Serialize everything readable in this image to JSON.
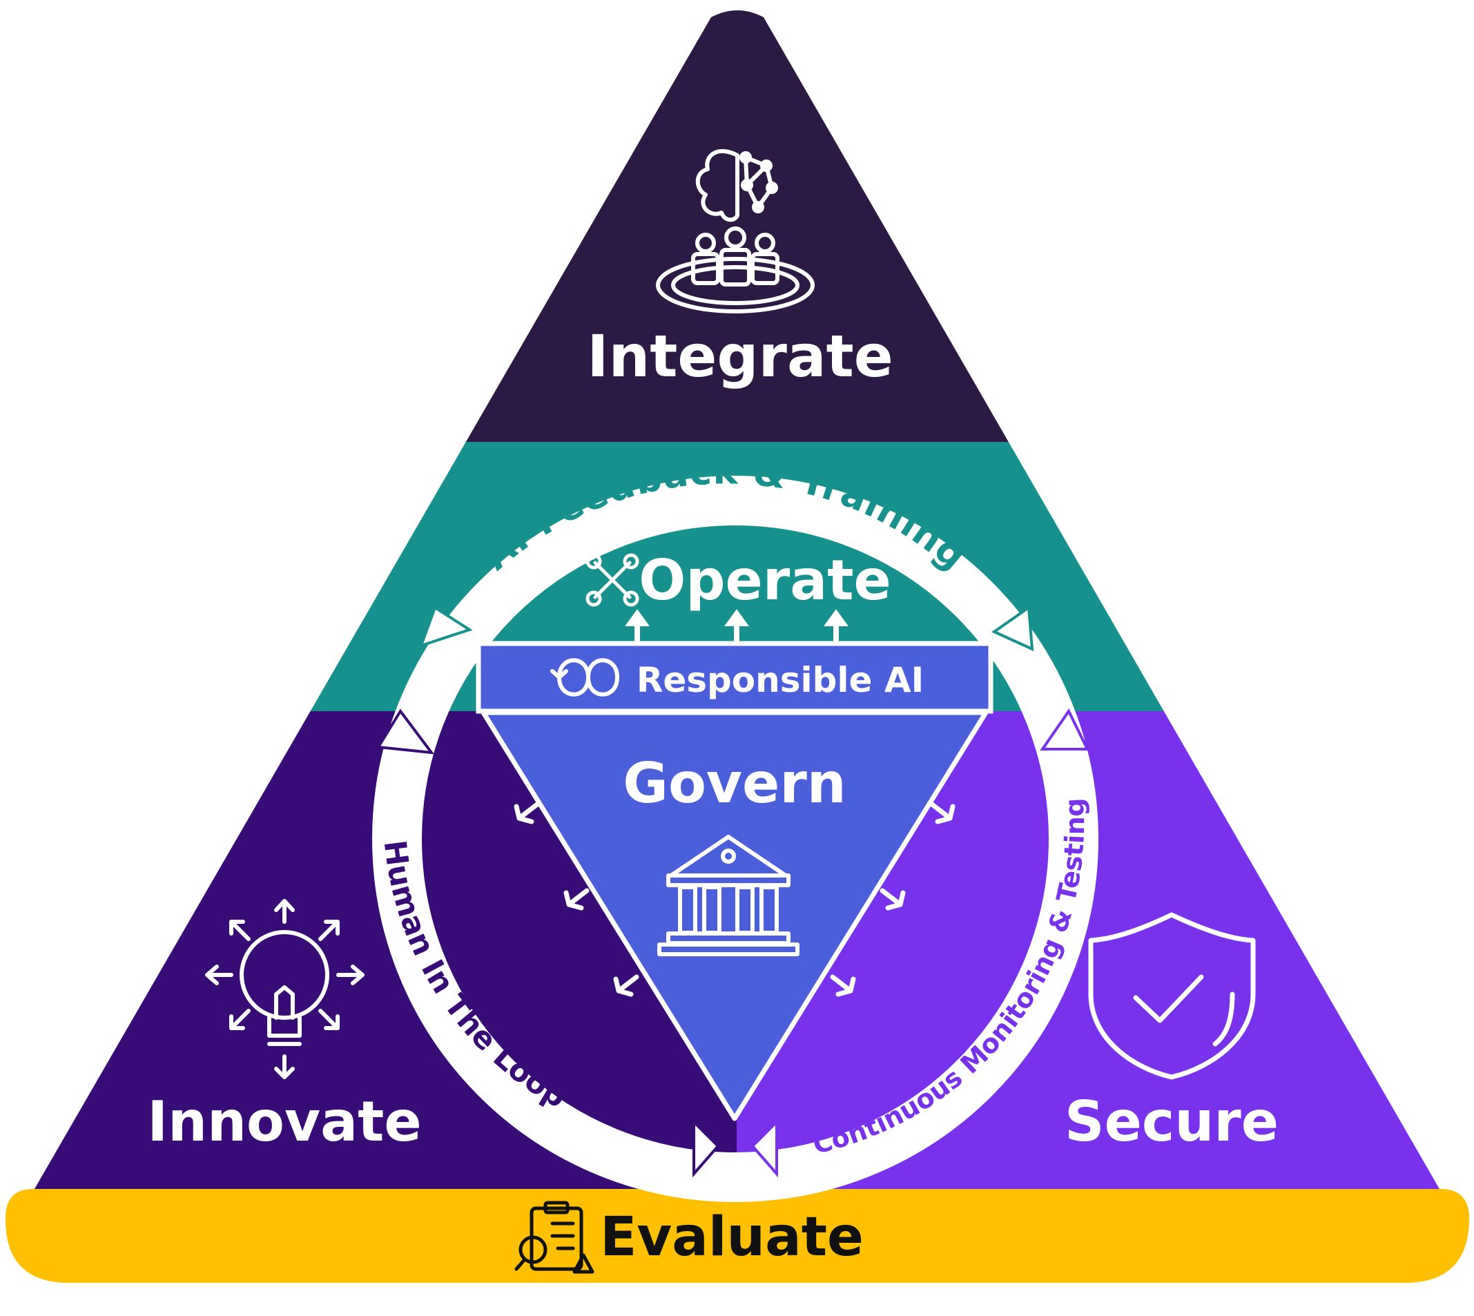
{
  "sections": {
    "integrate": {
      "label": "Integrate",
      "icon": "brain-team-icon",
      "color": "#2a1a44"
    },
    "operate": {
      "label": "Operate",
      "icon": "tools-icon",
      "color": "#16918d"
    },
    "innovate": {
      "label": "Innovate",
      "icon": "lightbulb-arrows-icon",
      "color": "#370c77"
    },
    "secure": {
      "label": "Secure",
      "icon": "shield-check-icon",
      "color": "#7832ec"
    },
    "govern": {
      "label": "Govern",
      "icon": "government-building-icon",
      "color": "#4b5fdb"
    },
    "responsible_ai": {
      "label": "Responsible AI",
      "icon": "infinity-loop-icon",
      "color": "#4b5fdb"
    },
    "evaluate": {
      "label": "Evaluate",
      "icon": "clipboard-search-icon",
      "color": "#fec000"
    }
  },
  "cycle": {
    "top": {
      "label": "AI Feedback & Training",
      "color": "#16918d"
    },
    "left": {
      "label": "Human In The Loop",
      "color": "#370c77"
    },
    "right": {
      "label": "Continuous Monitoring & Testing",
      "color": "#7832ec"
    }
  }
}
